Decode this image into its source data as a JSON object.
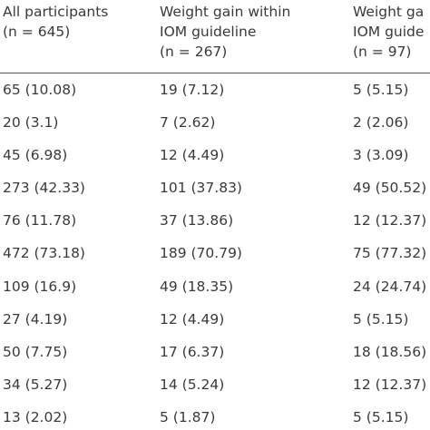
{
  "table": {
    "columns": [
      {
        "line1": "All participants",
        "line2": "(n = 645)",
        "line3": ""
      },
      {
        "line1": "Weight gain within",
        "line2": "IOM guideline",
        "line3": "(n = 267)"
      },
      {
        "line1": "Weight ga",
        "line2": "IOM guide",
        "line3": "(n = 97)"
      }
    ],
    "rows": [
      [
        "65 (10.08)",
        "19 (7.12)",
        "5 (5.15)"
      ],
      [
        "20 (3.1)",
        "7 (2.62)",
        "2 (2.06)"
      ],
      [
        "45 (6.98)",
        "12 (4.49)",
        "3 (3.09)"
      ],
      [
        "273 (42.33)",
        "101 (37.83)",
        "49 (50.52)"
      ],
      [
        "76 (11.78)",
        "37 (13.86)",
        "12 (12.37)"
      ],
      [
        "472 (73.18)",
        "189 (70.79)",
        "75 (77.32)"
      ],
      [
        "109 (16.9)",
        "49 (18.35)",
        "24 (24.74)"
      ],
      [
        "27 (4.19)",
        "12 (4.49)",
        "5 (5.15)"
      ],
      [
        "50 (7.75)",
        "17 (6.37)",
        "18 (18.56)"
      ],
      [
        "34 (5.27)",
        "14 (5.24)",
        "12 (12.37)"
      ],
      [
        "13 (2.02)",
        "5 (1.87)",
        "5 (5.15)"
      ]
    ]
  }
}
